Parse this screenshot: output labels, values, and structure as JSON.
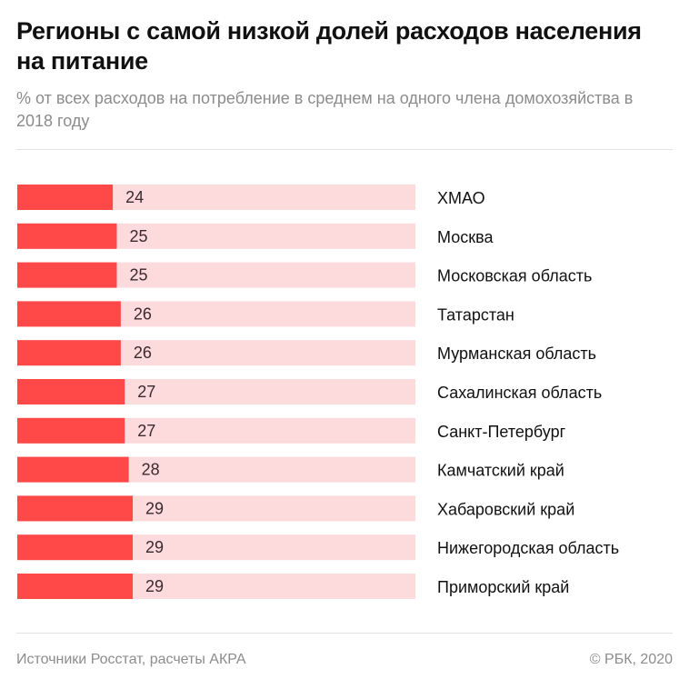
{
  "header": {
    "title": "Регионы с самой низкой долей расходов населения на питание",
    "subtitle": "% от всех расходов на потребление в среднем на одного члена домохозяйства в 2018 году"
  },
  "chart_data": {
    "type": "bar",
    "orientation": "horizontal",
    "categories": [
      "ХМАО",
      "Москва",
      "Московская область",
      "Татарстан",
      "Мурманская область",
      "Сахалинская область",
      "Санкт-Петербург",
      "Камчатский край",
      "Хабаровский край",
      "Нижегородская область",
      "Приморский край"
    ],
    "values": [
      24,
      25,
      25,
      26,
      26,
      27,
      27,
      28,
      29,
      29,
      29
    ],
    "xlim": [
      0,
      100
    ],
    "grid": false,
    "colors": {
      "bar": "#ff4848",
      "track": "#fddadb",
      "label": "#3b2b2b"
    }
  },
  "footer": {
    "source": "Источники Росстат, расчеты АКРА",
    "copyright": "© РБК, 2020"
  }
}
